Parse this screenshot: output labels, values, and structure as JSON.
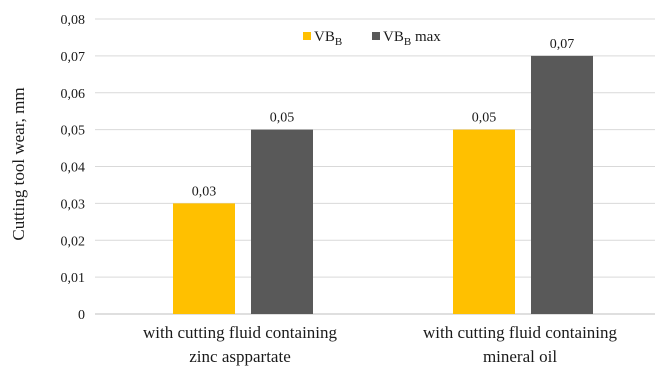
{
  "chart_data": {
    "type": "bar",
    "ylabel": "Cutting tool wear, mm",
    "ylim": [
      0,
      0.08
    ],
    "yticks": [
      "0",
      "0,01",
      "0,02",
      "0,03",
      "0,04",
      "0,05",
      "0,06",
      "0,07",
      "0,08"
    ],
    "grid": true,
    "legend_position": "top-center",
    "categories": [
      [
        "with cutting fluid containing",
        "zinc asppartate"
      ],
      [
        "with cutting fluid containing",
        "mineral oil"
      ]
    ],
    "series": [
      {
        "name": "VB",
        "name_subscript": "B",
        "name_suffix": "",
        "color": "#ffc000",
        "values": [
          0.03,
          0.05
        ],
        "labels": [
          "0,03",
          "0,05"
        ]
      },
      {
        "name": "VB",
        "name_subscript": "B",
        "name_suffix": " max",
        "color": "#595959",
        "values": [
          0.05,
          0.07
        ],
        "labels": [
          "0,05",
          "0,07"
        ]
      }
    ]
  }
}
